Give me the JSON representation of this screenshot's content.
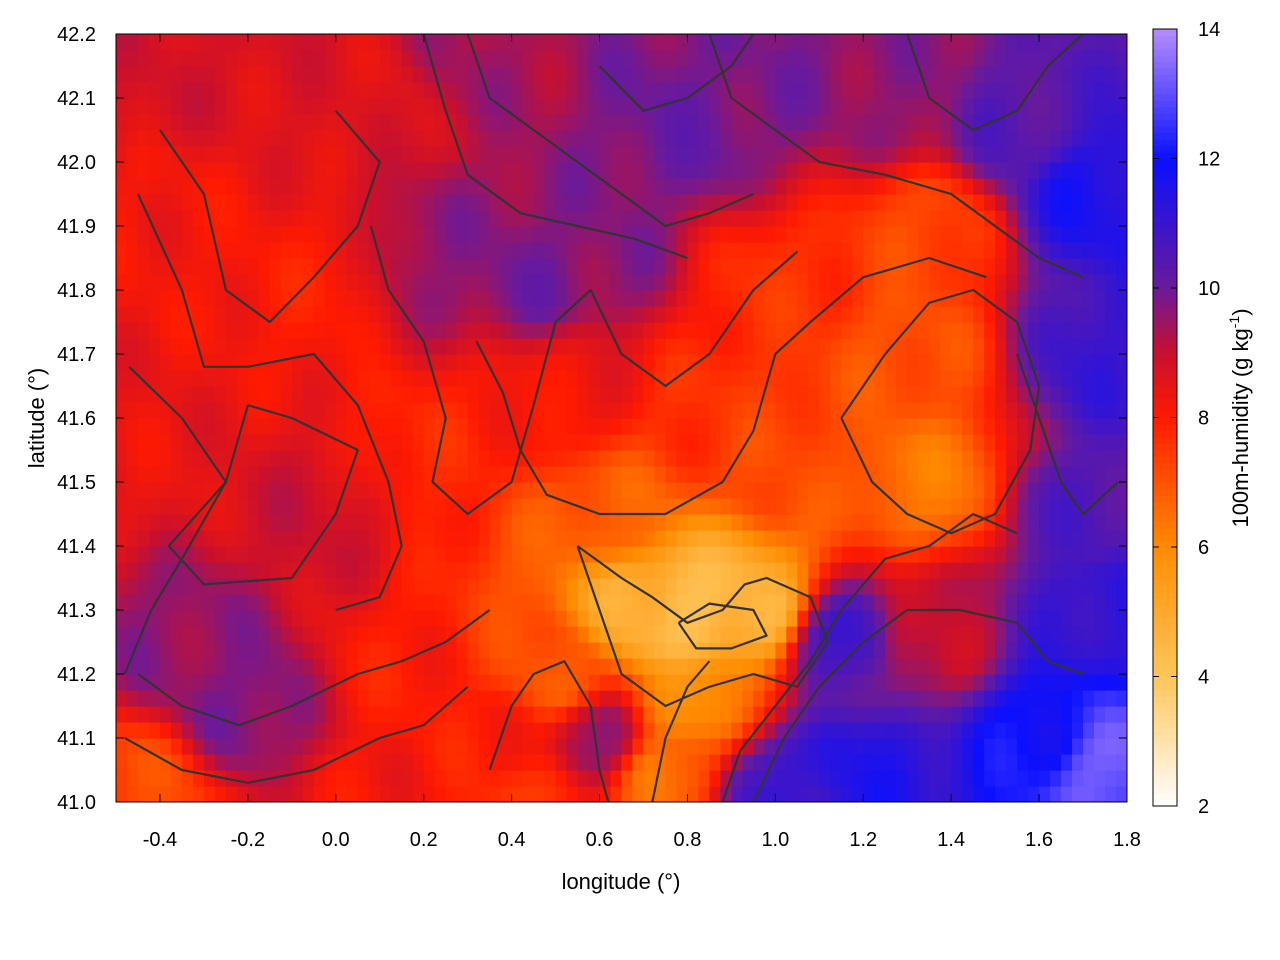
{
  "chart_data": {
    "type": "heatmap",
    "xlabel": "longitude (°)",
    "ylabel": "latitude (°)",
    "colorbar_label_main": "100m-humidity (g kg",
    "colorbar_label_sup": "-1",
    "colorbar_label_close": ")",
    "xlim": [
      -0.5,
      1.8
    ],
    "ylim": [
      41.0,
      42.2
    ],
    "zlim": [
      2,
      14
    ],
    "x_ticks": [
      -0.4,
      -0.2,
      0.0,
      0.2,
      0.4,
      0.6,
      0.8,
      1.0,
      1.2,
      1.4,
      1.6,
      1.8
    ],
    "x_tick_labels": [
      "-0.4",
      "-0.2",
      "0.0",
      "0.2",
      "0.4",
      "0.6",
      "0.8",
      "1.0",
      "1.2",
      "1.4",
      "1.6",
      "1.8"
    ],
    "y_ticks": [
      41.0,
      41.1,
      41.2,
      41.3,
      41.4,
      41.5,
      41.6,
      41.7,
      41.8,
      41.9,
      42.0,
      42.1,
      42.2
    ],
    "y_tick_labels": [
      "41.0",
      "41.1",
      "41.2",
      "41.3",
      "41.4",
      "41.5",
      "41.6",
      "41.7",
      "41.8",
      "41.9",
      "42.0",
      "42.1",
      "42.2"
    ],
    "colorbar_ticks": [
      2,
      4,
      6,
      8,
      10,
      12,
      14
    ],
    "colorbar_tick_labels": [
      "2",
      "4",
      "6",
      "8",
      "10",
      "12",
      "14"
    ],
    "colormap": [
      {
        "value": 2,
        "color": "#ffffff"
      },
      {
        "value": 4,
        "color": "#ffc65a"
      },
      {
        "value": 6,
        "color": "#ff8c00"
      },
      {
        "value": 8,
        "color": "#ff1a00"
      },
      {
        "value": 9,
        "color": "#c8102e"
      },
      {
        "value": 10,
        "color": "#6a1a9a"
      },
      {
        "value": 12,
        "color": "#0a10ff"
      },
      {
        "value": 14,
        "color": "#b58cff"
      }
    ],
    "contour_color": "#333333",
    "humidity_anchors": [
      {
        "lon": -0.45,
        "lat": 42.15,
        "value": 8.8
      },
      {
        "lon": -0.4,
        "lat": 41.9,
        "value": 8.2
      },
      {
        "lon": -0.42,
        "lat": 41.55,
        "value": 8.4
      },
      {
        "lon": -0.35,
        "lat": 41.25,
        "value": 9.6
      },
      {
        "lon": -0.2,
        "lat": 41.15,
        "value": 9.8
      },
      {
        "lon": -0.45,
        "lat": 41.02,
        "value": 7.2
      },
      {
        "lon": -0.05,
        "lat": 41.45,
        "value": 8.9
      },
      {
        "lon": -0.05,
        "lat": 41.8,
        "value": 8.0
      },
      {
        "lon": 0.1,
        "lat": 42.1,
        "value": 8.6
      },
      {
        "lon": 0.3,
        "lat": 42.15,
        "value": 9.4
      },
      {
        "lon": 0.25,
        "lat": 41.85,
        "value": 9.6
      },
      {
        "lon": 0.45,
        "lat": 41.82,
        "value": 9.9
      },
      {
        "lon": 0.6,
        "lat": 41.85,
        "value": 9.7
      },
      {
        "lon": 0.8,
        "lat": 42.05,
        "value": 10.0
      },
      {
        "lon": 1.0,
        "lat": 42.15,
        "value": 9.8
      },
      {
        "lon": 1.3,
        "lat": 42.1,
        "value": 9.6
      },
      {
        "lon": 1.55,
        "lat": 42.05,
        "value": 10.4
      },
      {
        "lon": 1.72,
        "lat": 41.95,
        "value": 11.6
      },
      {
        "lon": 1.75,
        "lat": 41.7,
        "value": 11.0
      },
      {
        "lon": 1.7,
        "lat": 41.45,
        "value": 10.5
      },
      {
        "lon": 1.75,
        "lat": 41.3,
        "value": 11.2
      },
      {
        "lon": 1.6,
        "lat": 41.1,
        "value": 12.0
      },
      {
        "lon": 1.75,
        "lat": 41.05,
        "value": 13.2
      },
      {
        "lon": 1.2,
        "lat": 41.05,
        "value": 11.5
      },
      {
        "lon": 1.0,
        "lat": 41.02,
        "value": 11.0
      },
      {
        "lon": 1.15,
        "lat": 41.25,
        "value": 10.8
      },
      {
        "lon": 1.35,
        "lat": 41.25,
        "value": 9.0
      },
      {
        "lon": 1.35,
        "lat": 41.5,
        "value": 6.4
      },
      {
        "lon": 1.3,
        "lat": 41.7,
        "value": 7.0
      },
      {
        "lon": 1.35,
        "lat": 41.9,
        "value": 7.2
      },
      {
        "lon": 1.0,
        "lat": 41.8,
        "value": 7.6
      },
      {
        "lon": 1.0,
        "lat": 41.55,
        "value": 7.2
      },
      {
        "lon": 0.85,
        "lat": 41.6,
        "value": 7.6
      },
      {
        "lon": 0.8,
        "lat": 41.3,
        "value": 4.2
      },
      {
        "lon": 0.7,
        "lat": 41.3,
        "value": 4.8
      },
      {
        "lon": 0.95,
        "lat": 41.3,
        "value": 4.6
      },
      {
        "lon": 0.8,
        "lat": 41.15,
        "value": 6.0
      },
      {
        "lon": 0.75,
        "lat": 41.05,
        "value": 6.5
      },
      {
        "lon": 0.6,
        "lat": 41.45,
        "value": 6.8
      },
      {
        "lon": 0.5,
        "lat": 41.2,
        "value": 7.0
      },
      {
        "lon": 0.6,
        "lat": 41.1,
        "value": 9.6
      },
      {
        "lon": 0.35,
        "lat": 41.1,
        "value": 8.0
      },
      {
        "lon": 0.15,
        "lat": 41.2,
        "value": 8.0
      },
      {
        "lon": 0.2,
        "lat": 41.55,
        "value": 7.8
      },
      {
        "lon": 0.4,
        "lat": 41.6,
        "value": 8.0
      },
      {
        "lon": 0.55,
        "lat": 41.65,
        "value": 8.3
      },
      {
        "lon": 0.1,
        "lat": 41.0,
        "value": 8.2
      },
      {
        "lon": 0.45,
        "lat": 41.0,
        "value": 7.6
      }
    ],
    "contours": [
      [
        [
          -0.47,
          41.68
        ],
        [
          -0.35,
          41.6
        ],
        [
          -0.25,
          41.5
        ],
        [
          -0.35,
          41.38
        ],
        [
          -0.42,
          41.3
        ],
        [
          -0.48,
          41.2
        ]
      ],
      [
        [
          -0.2,
          41.62
        ],
        [
          -0.1,
          41.6
        ],
        [
          0.05,
          41.55
        ],
        [
          0.0,
          41.45
        ],
        [
          -0.1,
          41.35
        ],
        [
          -0.3,
          41.34
        ],
        [
          -0.38,
          41.4
        ],
        [
          -0.25,
          41.5
        ],
        [
          -0.2,
          41.62
        ]
      ],
      [
        [
          -0.4,
          42.05
        ],
        [
          -0.3,
          41.95
        ],
        [
          -0.25,
          41.8
        ],
        [
          -0.15,
          41.75
        ],
        [
          -0.05,
          41.82
        ],
        [
          0.05,
          41.9
        ],
        [
          0.1,
          42.0
        ],
        [
          0.0,
          42.08
        ]
      ],
      [
        [
          -0.45,
          41.95
        ],
        [
          -0.35,
          41.8
        ],
        [
          -0.3,
          41.68
        ],
        [
          -0.2,
          41.68
        ],
        [
          -0.05,
          41.7
        ],
        [
          0.05,
          41.62
        ],
        [
          0.12,
          41.5
        ],
        [
          0.15,
          41.4
        ],
        [
          0.1,
          41.32
        ],
        [
          0.0,
          41.3
        ]
      ],
      [
        [
          0.08,
          41.9
        ],
        [
          0.12,
          41.8
        ],
        [
          0.2,
          41.72
        ],
        [
          0.25,
          41.6
        ],
        [
          0.22,
          41.5
        ],
        [
          0.3,
          41.45
        ],
        [
          0.4,
          41.5
        ],
        [
          0.45,
          41.62
        ],
        [
          0.5,
          41.75
        ],
        [
          0.58,
          41.8
        ],
        [
          0.65,
          41.7
        ],
        [
          0.75,
          41.65
        ],
        [
          0.85,
          41.7
        ],
        [
          0.95,
          41.8
        ],
        [
          1.05,
          41.86
        ]
      ],
      [
        [
          0.32,
          41.72
        ],
        [
          0.38,
          41.64
        ],
        [
          0.42,
          41.55
        ],
        [
          0.48,
          41.48
        ],
        [
          0.6,
          41.45
        ],
        [
          0.75,
          41.45
        ],
        [
          0.88,
          41.5
        ],
        [
          0.95,
          41.58
        ],
        [
          1.0,
          41.7
        ],
        [
          1.08,
          41.75
        ],
        [
          1.2,
          41.82
        ],
        [
          1.35,
          41.85
        ],
        [
          1.48,
          41.82
        ]
      ],
      [
        [
          0.55,
          41.4
        ],
        [
          0.65,
          41.35
        ],
        [
          0.72,
          41.32
        ],
        [
          0.8,
          41.28
        ],
        [
          0.88,
          41.3
        ],
        [
          0.93,
          41.34
        ],
        [
          0.98,
          41.35
        ],
        [
          1.08,
          41.32
        ],
        [
          1.12,
          41.25
        ],
        [
          1.05,
          41.18
        ],
        [
          0.95,
          41.2
        ],
        [
          0.85,
          41.18
        ],
        [
          0.75,
          41.15
        ],
        [
          0.65,
          41.2
        ],
        [
          0.6,
          41.3
        ],
        [
          0.55,
          41.4
        ]
      ],
      [
        [
          0.78,
          41.28
        ],
        [
          0.85,
          41.31
        ],
        [
          0.95,
          41.3
        ],
        [
          0.98,
          41.26
        ],
        [
          0.9,
          41.24
        ],
        [
          0.82,
          41.24
        ],
        [
          0.78,
          41.28
        ]
      ],
      [
        [
          0.88,
          41.0
        ],
        [
          0.92,
          41.08
        ],
        [
          1.0,
          41.15
        ],
        [
          1.08,
          41.22
        ],
        [
          1.15,
          41.3
        ],
        [
          1.25,
          41.38
        ],
        [
          1.35,
          41.4
        ],
        [
          1.45,
          41.45
        ],
        [
          1.55,
          41.42
        ]
      ],
      [
        [
          0.95,
          41.0
        ],
        [
          1.02,
          41.1
        ],
        [
          1.1,
          41.18
        ],
        [
          1.2,
          41.25
        ],
        [
          1.3,
          41.3
        ],
        [
          1.42,
          41.3
        ],
        [
          1.55,
          41.28
        ],
        [
          1.62,
          41.22
        ],
        [
          1.7,
          41.2
        ]
      ],
      [
        [
          1.15,
          41.6
        ],
        [
          1.22,
          41.5
        ],
        [
          1.3,
          41.45
        ],
        [
          1.4,
          41.42
        ],
        [
          1.5,
          41.45
        ],
        [
          1.58,
          41.55
        ],
        [
          1.6,
          41.65
        ],
        [
          1.55,
          41.75
        ],
        [
          1.45,
          41.8
        ],
        [
          1.35,
          41.78
        ],
        [
          1.25,
          41.7
        ],
        [
          1.15,
          41.6
        ]
      ],
      [
        [
          0.85,
          42.2
        ],
        [
          0.9,
          42.1
        ],
        [
          1.0,
          42.05
        ],
        [
          1.1,
          42.0
        ],
        [
          1.25,
          41.98
        ],
        [
          1.4,
          41.95
        ],
        [
          1.5,
          41.9
        ],
        [
          1.6,
          41.85
        ],
        [
          1.7,
          41.82
        ]
      ],
      [
        [
          0.3,
          42.2
        ],
        [
          0.35,
          42.1
        ],
        [
          0.45,
          42.05
        ],
        [
          0.55,
          42.0
        ],
        [
          0.65,
          41.95
        ],
        [
          0.75,
          41.9
        ],
        [
          0.85,
          41.92
        ],
        [
          0.95,
          41.95
        ]
      ],
      [
        [
          0.2,
          42.2
        ],
        [
          0.25,
          42.08
        ],
        [
          0.3,
          41.98
        ],
        [
          0.42,
          41.92
        ],
        [
          0.55,
          41.9
        ],
        [
          0.68,
          41.88
        ],
        [
          0.8,
          41.85
        ]
      ],
      [
        [
          -0.45,
          41.2
        ],
        [
          -0.35,
          41.15
        ],
        [
          -0.22,
          41.12
        ],
        [
          -0.1,
          41.15
        ],
        [
          0.05,
          41.2
        ],
        [
          0.15,
          41.22
        ],
        [
          0.25,
          41.25
        ],
        [
          0.35,
          41.3
        ]
      ],
      [
        [
          -0.48,
          41.1
        ],
        [
          -0.35,
          41.05
        ],
        [
          -0.2,
          41.03
        ],
        [
          -0.05,
          41.05
        ],
        [
          0.1,
          41.1
        ],
        [
          0.2,
          41.12
        ],
        [
          0.3,
          41.18
        ]
      ],
      [
        [
          0.35,
          41.05
        ],
        [
          0.4,
          41.15
        ],
        [
          0.45,
          41.2
        ],
        [
          0.52,
          41.22
        ],
        [
          0.58,
          41.15
        ],
        [
          0.6,
          41.05
        ],
        [
          0.62,
          41.0
        ]
      ],
      [
        [
          0.72,
          41.0
        ],
        [
          0.75,
          41.1
        ],
        [
          0.8,
          41.18
        ],
        [
          0.85,
          41.22
        ]
      ],
      [
        [
          1.3,
          42.2
        ],
        [
          1.35,
          42.1
        ],
        [
          1.45,
          42.05
        ],
        [
          1.55,
          42.08
        ],
        [
          1.62,
          42.15
        ],
        [
          1.7,
          42.2
        ]
      ],
      [
        [
          1.55,
          41.7
        ],
        [
          1.6,
          41.6
        ],
        [
          1.65,
          41.5
        ],
        [
          1.7,
          41.45
        ],
        [
          1.78,
          41.5
        ]
      ],
      [
        [
          0.6,
          42.15
        ],
        [
          0.7,
          42.08
        ],
        [
          0.8,
          42.1
        ],
        [
          0.9,
          42.15
        ],
        [
          0.95,
          42.2
        ]
      ]
    ]
  }
}
